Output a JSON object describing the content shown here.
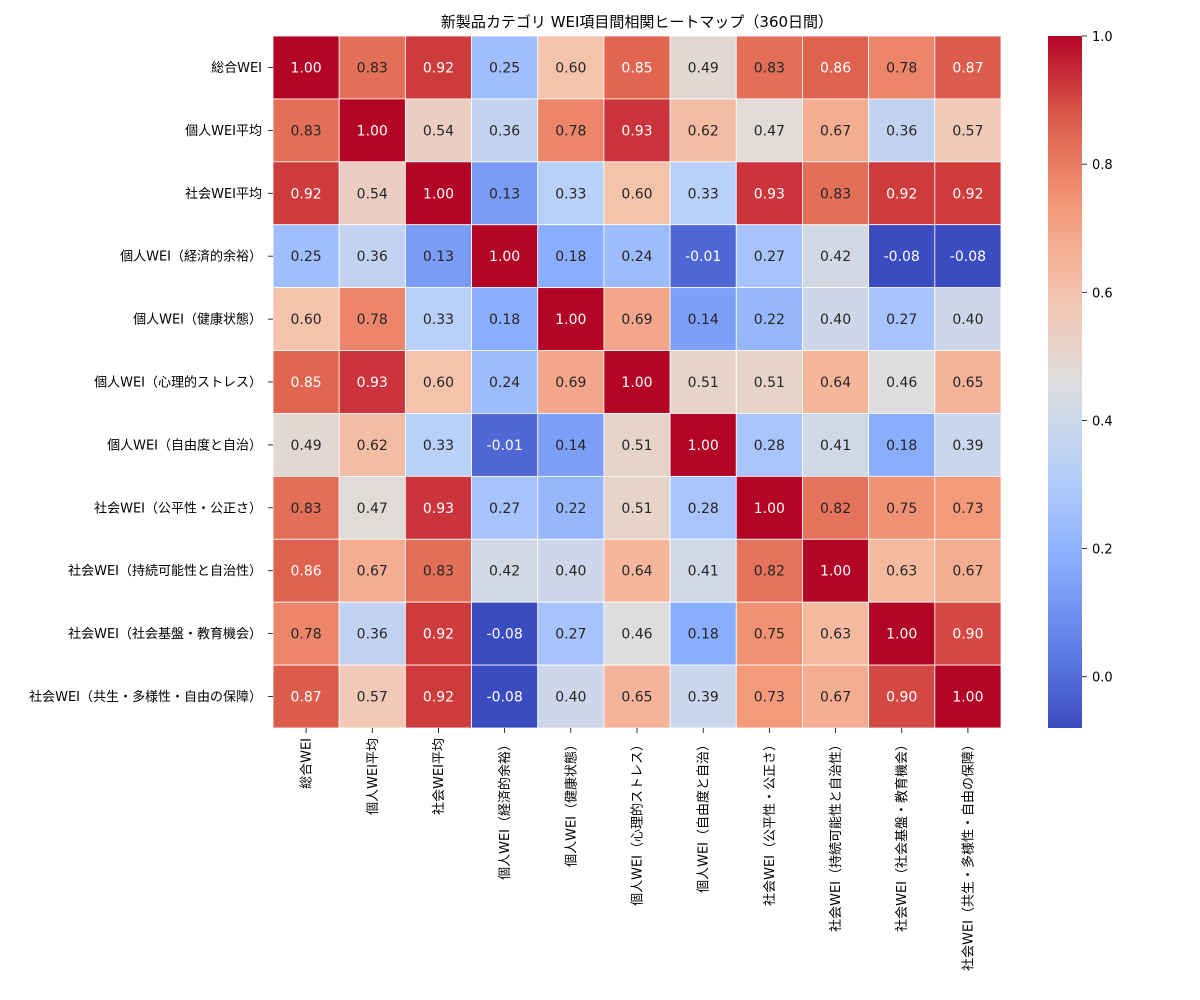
{
  "chart_data": {
    "type": "heatmap",
    "title": "新製品カテゴリ WEI項目間相関ヒートマップ（360日間）",
    "labels": [
      "総合WEI",
      "個人WEI平均",
      "社会WEI平均",
      "個人WEI（経済的余裕）",
      "個人WEI（健康状態）",
      "個人WEI（心理的ストレス）",
      "個人WEI（自由度と自治）",
      "社会WEI（公平性・公正さ）",
      "社会WEI（持続可能性と自治性）",
      "社会WEI（社会基盤・教育機会）",
      "社会WEI（共生・多様性・自由の保障）"
    ],
    "values": [
      [
        1.0,
        0.83,
        0.92,
        0.25,
        0.6,
        0.85,
        0.49,
        0.83,
        0.86,
        0.78,
        0.87
      ],
      [
        0.83,
        1.0,
        0.54,
        0.36,
        0.78,
        0.93,
        0.62,
        0.47,
        0.67,
        0.36,
        0.57
      ],
      [
        0.92,
        0.54,
        1.0,
        0.13,
        0.33,
        0.6,
        0.33,
        0.93,
        0.83,
        0.92,
        0.92
      ],
      [
        0.25,
        0.36,
        0.13,
        1.0,
        0.18,
        0.24,
        -0.01,
        0.27,
        0.42,
        -0.08,
        -0.08
      ],
      [
        0.6,
        0.78,
        0.33,
        0.18,
        1.0,
        0.69,
        0.14,
        0.22,
        0.4,
        0.27,
        0.4
      ],
      [
        0.85,
        0.93,
        0.6,
        0.24,
        0.69,
        1.0,
        0.51,
        0.51,
        0.64,
        0.46,
        0.65
      ],
      [
        0.49,
        0.62,
        0.33,
        -0.01,
        0.14,
        0.51,
        1.0,
        0.28,
        0.41,
        0.18,
        0.39
      ],
      [
        0.83,
        0.47,
        0.93,
        0.27,
        0.22,
        0.51,
        0.28,
        1.0,
        0.82,
        0.75,
        0.73
      ],
      [
        0.86,
        0.67,
        0.83,
        0.42,
        0.4,
        0.64,
        0.41,
        0.82,
        1.0,
        0.63,
        0.67
      ],
      [
        0.78,
        0.36,
        0.92,
        -0.08,
        0.27,
        0.46,
        0.18,
        0.75,
        0.63,
        1.0,
        0.9
      ],
      [
        0.87,
        0.57,
        0.92,
        -0.08,
        0.4,
        0.65,
        0.39,
        0.73,
        0.67,
        0.9,
        1.0
      ]
    ],
    "colormap": "coolwarm",
    "vmin": -0.08,
    "vmax": 1.0,
    "colorbar_ticks": [
      "0.0",
      "0.2",
      "0.4",
      "0.6",
      "0.8",
      "1.0"
    ],
    "annotations_format": "0.00"
  }
}
